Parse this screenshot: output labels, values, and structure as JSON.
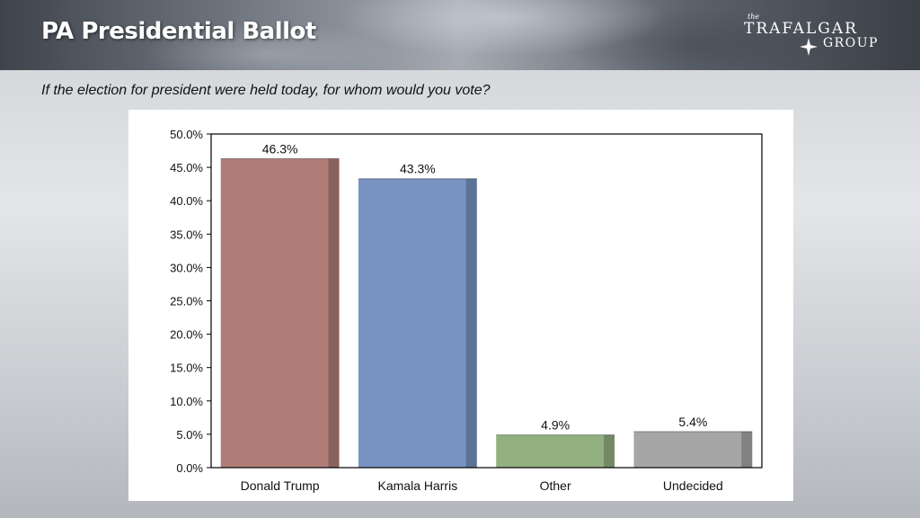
{
  "header": {
    "title": "PA Presidential Ballot",
    "logo": {
      "small": "the",
      "line1": "TRAFALGAR",
      "line2": "GROUP",
      "icon": "compass-star-icon"
    }
  },
  "question": "If the election for president were held today, for whom would you vote?",
  "chart_data": {
    "type": "bar",
    "title": "",
    "xlabel": "",
    "ylabel": "",
    "categories": [
      "Donald Trump",
      "Kamala Harris",
      "Other",
      "Undecided"
    ],
    "values": [
      46.3,
      43.3,
      4.9,
      5.4
    ],
    "value_labels": [
      "46.3%",
      "43.3%",
      "4.9%",
      "5.4%"
    ],
    "colors": [
      "#b07d78",
      "#7892c2",
      "#93b080",
      "#a6a6a6"
    ],
    "ylim": [
      0,
      50
    ],
    "yticks": [
      0,
      5,
      10,
      15,
      20,
      25,
      30,
      35,
      40,
      45,
      50
    ],
    "ytick_labels": [
      "0.0%",
      "5.0%",
      "10.0%",
      "15.0%",
      "20.0%",
      "25.0%",
      "30.0%",
      "35.0%",
      "40.0%",
      "45.0%",
      "50.0%"
    ],
    "grid": false,
    "legend": "none"
  }
}
